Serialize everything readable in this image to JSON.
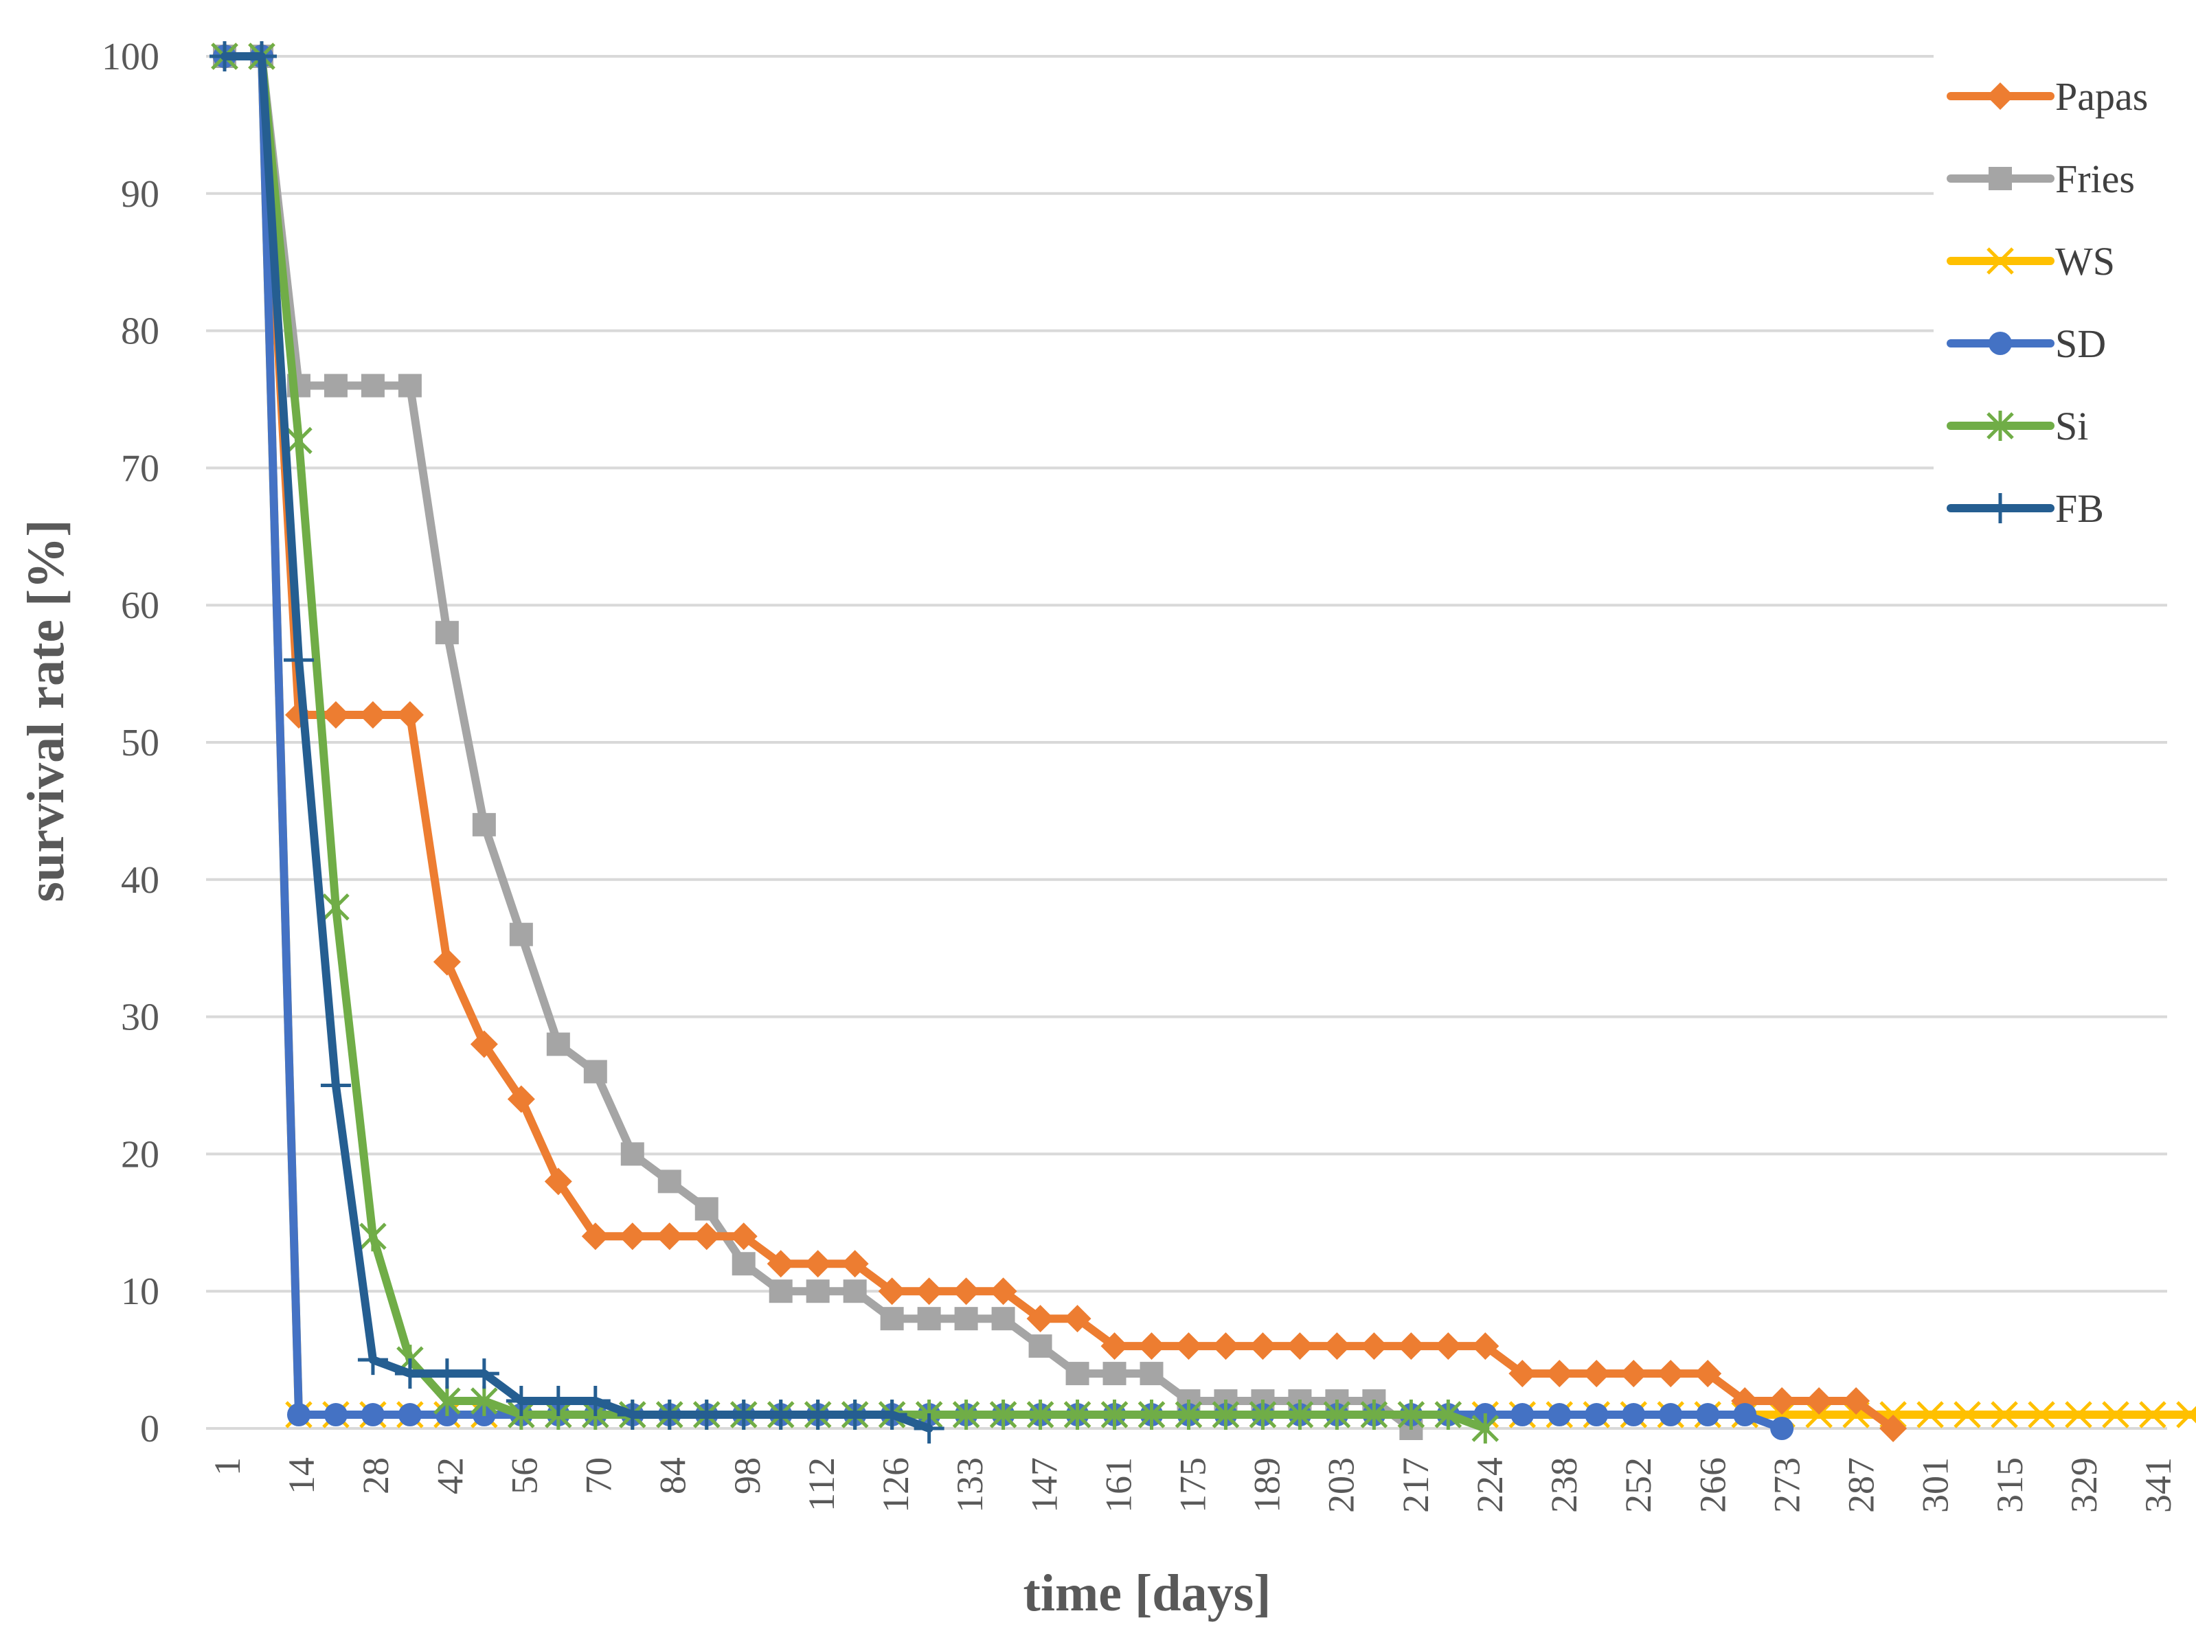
{
  "chart_data": {
    "type": "line",
    "title": "",
    "xlabel": "time [days]",
    "ylabel": "survival rate [%]",
    "ylim": [
      0,
      100
    ],
    "yticks": [
      "0",
      "10",
      "20",
      "30",
      "40",
      "50",
      "60",
      "70",
      "80",
      "90",
      "100"
    ],
    "xticks": [
      "1",
      "14",
      "28",
      "42",
      "56",
      "70",
      "84",
      "98",
      "112",
      "126",
      "133",
      "147",
      "161",
      "175",
      "189",
      "203",
      "217",
      "224",
      "238",
      "252",
      "266",
      "273",
      "287",
      "301",
      "315",
      "329",
      "341"
    ],
    "grid": "horizontal",
    "legend_position": "top-right",
    "series": [
      {
        "name": "Papas",
        "color": "#ED7D31",
        "marker": "diamond",
        "points": [
          [
            0,
            100
          ],
          [
            1,
            100
          ],
          [
            2,
            52
          ],
          [
            3,
            52
          ],
          [
            4,
            52
          ],
          [
            5,
            52
          ],
          [
            6,
            34
          ],
          [
            7,
            28
          ],
          [
            8,
            24
          ],
          [
            9,
            18
          ],
          [
            10,
            14
          ],
          [
            11,
            14
          ],
          [
            12,
            14
          ],
          [
            13,
            14
          ],
          [
            14,
            14
          ],
          [
            15,
            12
          ],
          [
            16,
            12
          ],
          [
            17,
            12
          ],
          [
            18,
            10
          ],
          [
            19,
            10
          ],
          [
            20,
            10
          ],
          [
            21,
            10
          ],
          [
            22,
            8
          ],
          [
            23,
            8
          ],
          [
            24,
            6
          ],
          [
            25,
            6
          ],
          [
            26,
            6
          ],
          [
            27,
            6
          ],
          [
            28,
            6
          ],
          [
            29,
            6
          ],
          [
            30,
            6
          ],
          [
            31,
            6
          ],
          [
            32,
            6
          ],
          [
            33,
            6
          ],
          [
            34,
            6
          ],
          [
            35,
            4
          ],
          [
            36,
            4
          ],
          [
            37,
            4
          ],
          [
            38,
            4
          ],
          [
            39,
            4
          ],
          [
            40,
            4
          ],
          [
            41,
            2
          ],
          [
            42,
            2
          ],
          [
            43,
            2
          ],
          [
            44,
            2
          ],
          [
            45,
            0
          ]
        ]
      },
      {
        "name": "Fries",
        "color": "#A5A5A5",
        "marker": "square",
        "points": [
          [
            0,
            100
          ],
          [
            1,
            100
          ],
          [
            2,
            76
          ],
          [
            3,
            76
          ],
          [
            4,
            76
          ],
          [
            5,
            76
          ],
          [
            6,
            58
          ],
          [
            7,
            44
          ],
          [
            8,
            36
          ],
          [
            9,
            28
          ],
          [
            10,
            26
          ],
          [
            11,
            20
          ],
          [
            12,
            18
          ],
          [
            13,
            16
          ],
          [
            14,
            12
          ],
          [
            15,
            10
          ],
          [
            16,
            10
          ],
          [
            17,
            10
          ],
          [
            18,
            8
          ],
          [
            19,
            8
          ],
          [
            20,
            8
          ],
          [
            21,
            8
          ],
          [
            22,
            6
          ],
          [
            23,
            4
          ],
          [
            24,
            4
          ],
          [
            25,
            4
          ],
          [
            26,
            2
          ],
          [
            27,
            2
          ],
          [
            28,
            2
          ],
          [
            29,
            2
          ],
          [
            30,
            2
          ],
          [
            31,
            2
          ],
          [
            32,
            0
          ]
        ]
      },
      {
        "name": "WS",
        "color": "#FFC000",
        "marker": "x",
        "points": [
          [
            0,
            100
          ],
          [
            1,
            100
          ],
          [
            2,
            1
          ],
          [
            3,
            1
          ],
          [
            4,
            1
          ],
          [
            5,
            1
          ],
          [
            6,
            1
          ],
          [
            7,
            1
          ],
          [
            8,
            1
          ],
          [
            9,
            1
          ],
          [
            10,
            1
          ],
          [
            11,
            1
          ],
          [
            12,
            1
          ],
          [
            13,
            1
          ],
          [
            14,
            1
          ],
          [
            15,
            1
          ],
          [
            16,
            1
          ],
          [
            17,
            1
          ],
          [
            18,
            1
          ],
          [
            19,
            1
          ],
          [
            20,
            1
          ],
          [
            21,
            1
          ],
          [
            22,
            1
          ],
          [
            23,
            1
          ],
          [
            24,
            1
          ],
          [
            25,
            1
          ],
          [
            26,
            1
          ],
          [
            27,
            1
          ],
          [
            28,
            1
          ],
          [
            29,
            1
          ],
          [
            30,
            1
          ],
          [
            31,
            1
          ],
          [
            32,
            1
          ],
          [
            33,
            1
          ],
          [
            34,
            1
          ],
          [
            35,
            1
          ],
          [
            36,
            1
          ],
          [
            37,
            1
          ],
          [
            38,
            1
          ],
          [
            39,
            1
          ],
          [
            40,
            1
          ],
          [
            41,
            1
          ],
          [
            42,
            1
          ],
          [
            43,
            1
          ],
          [
            44,
            1
          ],
          [
            45,
            1
          ],
          [
            46,
            1
          ],
          [
            47,
            1
          ],
          [
            48,
            1
          ],
          [
            49,
            1
          ],
          [
            50,
            1
          ],
          [
            51,
            1
          ],
          [
            52,
            1
          ],
          [
            53,
            1
          ],
          [
            54,
            1
          ],
          [
            55,
            1
          ],
          [
            56,
            1
          ],
          [
            57,
            1
          ],
          [
            58,
            1
          ],
          [
            59,
            1
          ],
          [
            60,
            1
          ],
          [
            61,
            1
          ],
          [
            62,
            1
          ],
          [
            63,
            1
          ],
          [
            64,
            0
          ]
        ]
      },
      {
        "name": "SD",
        "color": "#4472C4",
        "marker": "circle",
        "points": [
          [
            0,
            100
          ],
          [
            1,
            100
          ],
          [
            2,
            1
          ],
          [
            3,
            1
          ],
          [
            4,
            1
          ],
          [
            5,
            1
          ],
          [
            6,
            1
          ],
          [
            7,
            1
          ],
          [
            8,
            1
          ],
          [
            9,
            1
          ],
          [
            10,
            1
          ],
          [
            11,
            1
          ],
          [
            12,
            1
          ],
          [
            13,
            1
          ],
          [
            14,
            1
          ],
          [
            15,
            1
          ],
          [
            16,
            1
          ],
          [
            17,
            1
          ],
          [
            18,
            1
          ],
          [
            19,
            1
          ],
          [
            20,
            1
          ],
          [
            21,
            1
          ],
          [
            22,
            1
          ],
          [
            23,
            1
          ],
          [
            24,
            1
          ],
          [
            25,
            1
          ],
          [
            26,
            1
          ],
          [
            27,
            1
          ],
          [
            28,
            1
          ],
          [
            29,
            1
          ],
          [
            30,
            1
          ],
          [
            31,
            1
          ],
          [
            32,
            1
          ],
          [
            33,
            1
          ],
          [
            34,
            1
          ],
          [
            35,
            1
          ],
          [
            36,
            1
          ],
          [
            37,
            1
          ],
          [
            38,
            1
          ],
          [
            39,
            1
          ],
          [
            40,
            1
          ],
          [
            41,
            1
          ],
          [
            42,
            0
          ]
        ]
      },
      {
        "name": "Si",
        "color": "#70AD47",
        "marker": "asterisk",
        "points": [
          [
            0,
            100
          ],
          [
            1,
            100
          ],
          [
            2,
            72
          ],
          [
            3,
            38
          ],
          [
            4,
            14
          ],
          [
            5,
            5
          ],
          [
            6,
            2
          ],
          [
            7,
            2
          ],
          [
            8,
            1
          ],
          [
            9,
            1
          ],
          [
            10,
            1
          ],
          [
            11,
            1
          ],
          [
            12,
            1
          ],
          [
            13,
            1
          ],
          [
            14,
            1
          ],
          [
            15,
            1
          ],
          [
            16,
            1
          ],
          [
            17,
            1
          ],
          [
            18,
            1
          ],
          [
            19,
            1
          ],
          [
            20,
            1
          ],
          [
            21,
            1
          ],
          [
            22,
            1
          ],
          [
            23,
            1
          ],
          [
            24,
            1
          ],
          [
            25,
            1
          ],
          [
            26,
            1
          ],
          [
            27,
            1
          ],
          [
            28,
            1
          ],
          [
            29,
            1
          ],
          [
            30,
            1
          ],
          [
            31,
            1
          ],
          [
            32,
            1
          ],
          [
            33,
            1
          ],
          [
            34,
            0
          ]
        ]
      },
      {
        "name": "FB",
        "color": "#255E91",
        "marker": "plus",
        "points": [
          [
            0,
            100
          ],
          [
            1,
            100
          ],
          [
            2,
            56
          ],
          [
            3,
            25
          ],
          [
            4,
            5
          ],
          [
            5,
            4
          ],
          [
            6,
            4
          ],
          [
            7,
            4
          ],
          [
            8,
            2
          ],
          [
            9,
            2
          ],
          [
            10,
            2
          ],
          [
            11,
            1
          ],
          [
            12,
            1
          ],
          [
            13,
            1
          ],
          [
            14,
            1
          ],
          [
            15,
            1
          ],
          [
            16,
            1
          ],
          [
            17,
            1
          ],
          [
            18,
            1
          ],
          [
            19,
            0
          ]
        ]
      }
    ]
  }
}
